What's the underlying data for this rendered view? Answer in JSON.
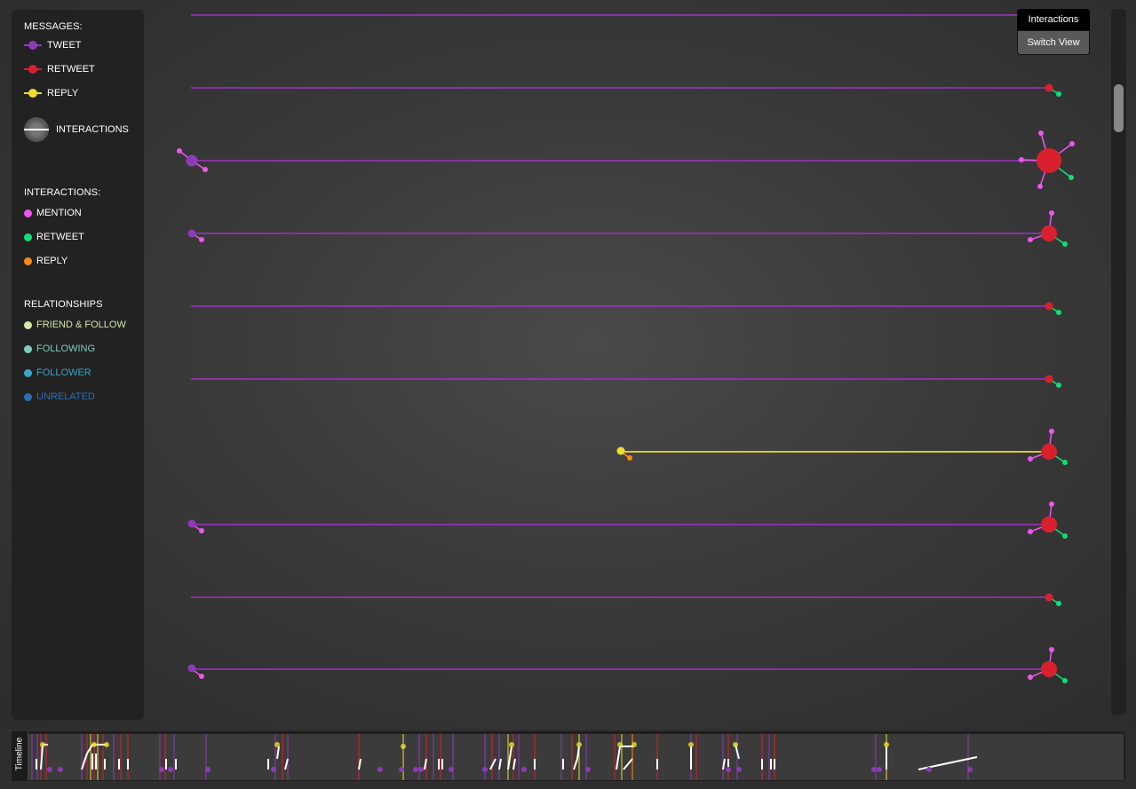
{
  "legend": {
    "messages_heading": "MESSAGES:",
    "messages": [
      {
        "label": "TWEET",
        "color": "#8e3bb8"
      },
      {
        "label": "RETWEET",
        "color": "#d9212e"
      },
      {
        "label": "REPLY",
        "color": "#eedc2f"
      }
    ],
    "interactions_key_label": "INTERACTIONS",
    "interactions_heading": "INTERACTIONS:",
    "interactions": [
      {
        "label": "MENTION",
        "color": "#ee55ee"
      },
      {
        "label": "RETWEET",
        "color": "#11dd77"
      },
      {
        "label": "REPLY",
        "color": "#ff8811"
      }
    ],
    "relationships_heading": "RELATIONSHIPS",
    "relationships": [
      {
        "label": "FRIEND & FOLLOW",
        "color": "#d4e6a8"
      },
      {
        "label": "FOLLOWING",
        "color": "#7ecdbb"
      },
      {
        "label": "FOLLOWER",
        "color": "#3aa6c5"
      },
      {
        "label": "UNRELATED",
        "color": "#2a6fb5"
      }
    ]
  },
  "view_panel": {
    "title": "Interactions",
    "switch_label": "Switch View"
  },
  "timeline": {
    "label": "Timeline"
  }
}
